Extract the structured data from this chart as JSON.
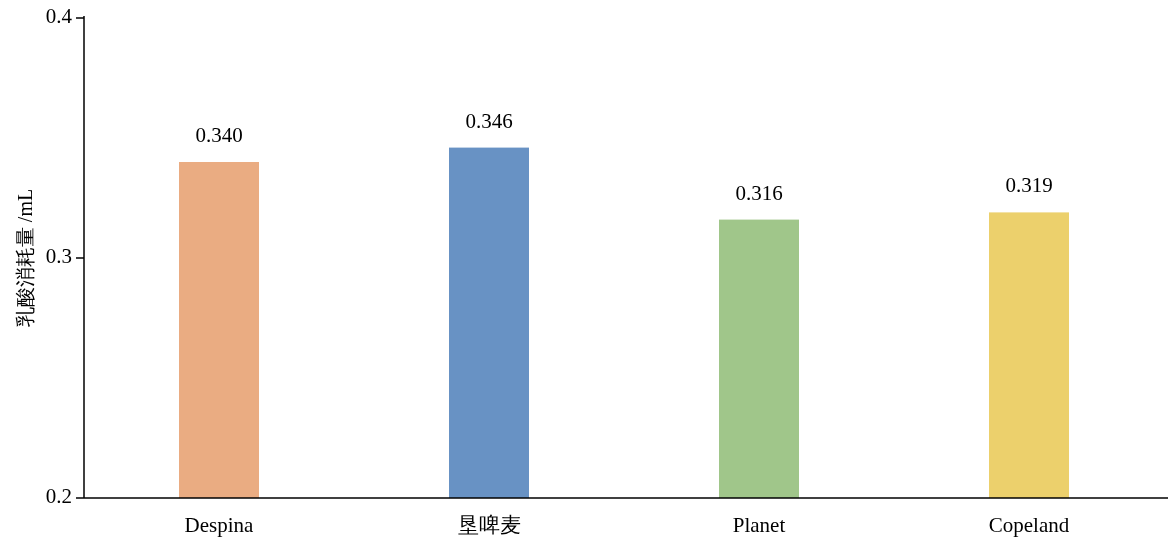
{
  "chart_data": {
    "type": "bar",
    "ylabel": "乳酸消耗量 /mL",
    "categories": [
      "Despina",
      "垦啤麦",
      "Planet",
      "Copeland"
    ],
    "values": [
      0.34,
      0.346,
      0.316,
      0.319
    ],
    "value_labels": [
      "0.340",
      "0.346",
      "0.316",
      "0.319"
    ],
    "colors": [
      "#eaac82",
      "#6892c4",
      "#a0c68a",
      "#ecd06c"
    ],
    "ylim": [
      0.2,
      0.4
    ],
    "yticks": [
      0.2,
      0.3,
      0.4
    ]
  }
}
